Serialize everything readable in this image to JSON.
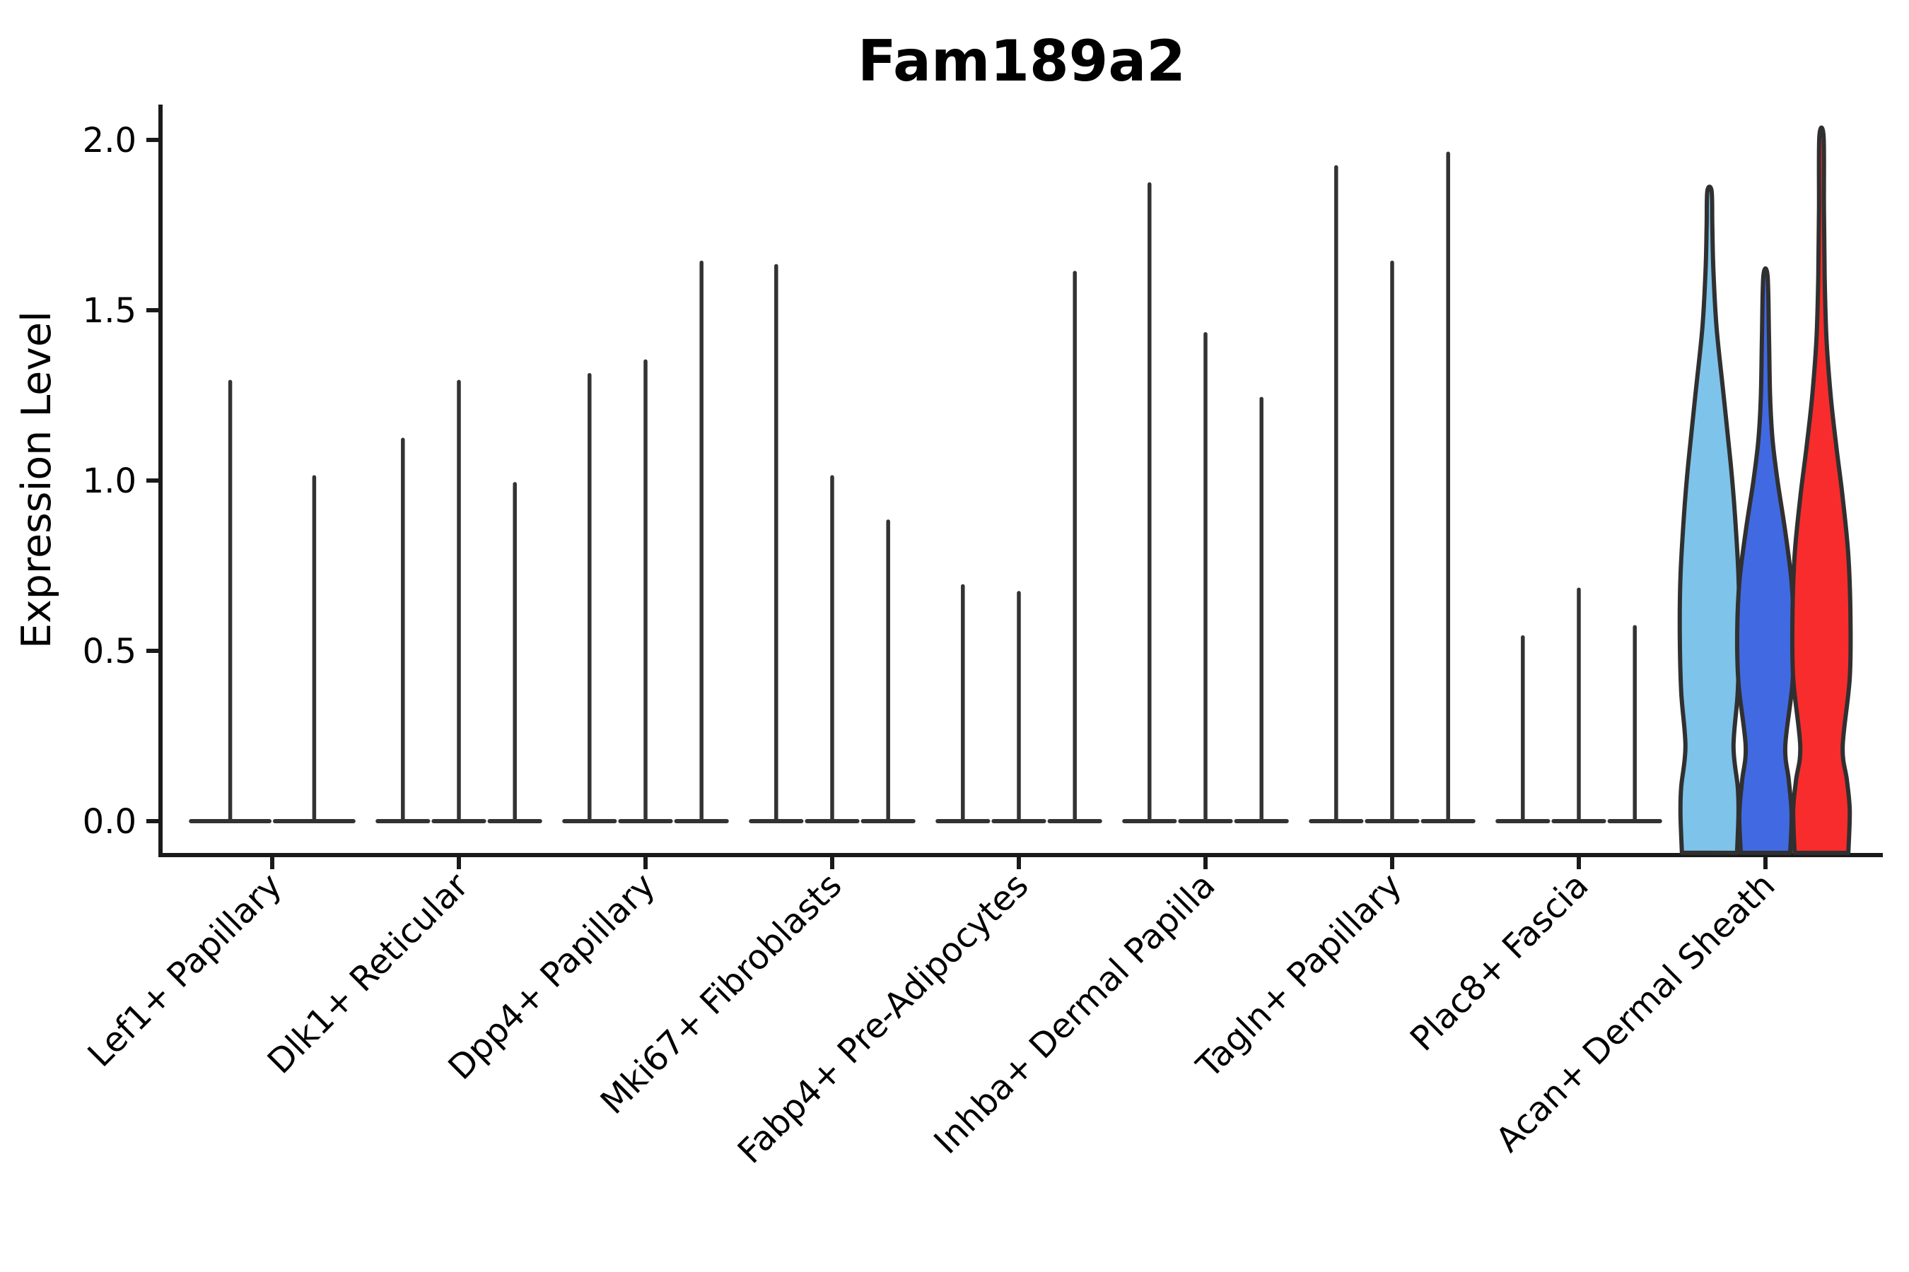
{
  "title": "Fam189a2",
  "ylabel": "Expression Level",
  "chart_data": {
    "type": "violin",
    "title": "Fam189a2",
    "xlabel": "",
    "ylabel": "Expression Level",
    "ylim": [
      -0.1,
      2.11
    ],
    "yticks": [
      "0.0",
      "0.5",
      "1.0",
      "1.5",
      "2.0"
    ],
    "ytick_values": [
      0.0,
      0.5,
      1.0,
      1.5,
      2.0
    ],
    "grid": false,
    "legend": "none",
    "x_label_rotation_deg": 45,
    "categories": [
      "Lef1+ Papillary",
      "Dlk1+ Reticular",
      "Dpp4+ Papillary",
      "Mki67+ Fibroblasts",
      "Fabp4+ Pre-Adipocytes",
      "Inhba+ Dermal Papilla",
      "Tagln+ Papillary",
      "Plac8+ Fascia",
      "Acan+ Dermal Sheath"
    ],
    "groups": [
      {
        "category": "Lef1+ Papillary",
        "violins": [
          {
            "max": 1.29
          },
          {
            "max": 1.01
          }
        ]
      },
      {
        "category": "Dlk1+ Reticular",
        "violins": [
          {
            "max": 1.12
          },
          {
            "max": 1.29
          },
          {
            "max": 0.99
          }
        ]
      },
      {
        "category": "Dpp4+ Papillary",
        "violins": [
          {
            "max": 1.31
          },
          {
            "max": 1.35
          },
          {
            "max": 1.64
          }
        ]
      },
      {
        "category": "Mki67+ Fibroblasts",
        "violins": [
          {
            "max": 1.63
          },
          {
            "max": 1.01
          },
          {
            "max": 0.88
          }
        ]
      },
      {
        "category": "Fabp4+ Pre-Adipocytes",
        "violins": [
          {
            "max": 0.69
          },
          {
            "max": 0.67
          },
          {
            "max": 1.61
          }
        ]
      },
      {
        "category": "Inhba+ Dermal Papilla",
        "violins": [
          {
            "max": 1.87
          },
          {
            "max": 1.43
          },
          {
            "max": 1.24
          }
        ]
      },
      {
        "category": "Tagln+ Papillary",
        "violins": [
          {
            "max": 1.92
          },
          {
            "max": 1.64
          },
          {
            "max": 1.96
          }
        ]
      },
      {
        "category": "Plac8+ Fascia",
        "violins": [
          {
            "max": 0.54
          },
          {
            "max": 0.68
          },
          {
            "max": 0.57
          }
        ]
      },
      {
        "category": "Acan+ Dermal Sheath",
        "violins": [
          {
            "max": 1.85,
            "fill": "#7EC3EA",
            "profile": [
              [
                -0.093,
                39
              ],
              [
                0.02,
                41
              ],
              [
                0.1,
                40
              ],
              [
                0.22,
                34
              ],
              [
                0.38,
                40
              ],
              [
                0.55,
                42
              ],
              [
                0.72,
                41
              ],
              [
                0.9,
                36
              ],
              [
                1.05,
                30
              ],
              [
                1.25,
                20
              ],
              [
                1.45,
                10
              ],
              [
                1.62,
                5.5
              ],
              [
                1.75,
                4
              ],
              [
                1.85,
                3
              ]
            ]
          },
          {
            "max": 1.6,
            "fill": "#4169E1",
            "profile": [
              [
                -0.093,
                35
              ],
              [
                0.02,
                37
              ],
              [
                0.12,
                33
              ],
              [
                0.22,
                28
              ],
              [
                0.4,
                38
              ],
              [
                0.55,
                40
              ],
              [
                0.7,
                37
              ],
              [
                0.85,
                28
              ],
              [
                1.0,
                17
              ],
              [
                1.12,
                10
              ],
              [
                1.25,
                6.5
              ],
              [
                1.42,
                5
              ],
              [
                1.6,
                3
              ]
            ]
          },
          {
            "max": 2.01,
            "fill": "#F82C2C",
            "profile": [
              [
                -0.093,
                38
              ],
              [
                0.03,
                40
              ],
              [
                0.12,
                36
              ],
              [
                0.22,
                30
              ],
              [
                0.42,
                40
              ],
              [
                0.6,
                41
              ],
              [
                0.78,
                38
              ],
              [
                0.95,
                30
              ],
              [
                1.1,
                21
              ],
              [
                1.25,
                13
              ],
              [
                1.42,
                7
              ],
              [
                1.6,
                4.5
              ],
              [
                1.8,
                3.5
              ],
              [
                2.01,
                3
              ]
            ]
          }
        ]
      }
    ],
    "colors": {
      "axis": "#1a1a1a",
      "spike": "#333333",
      "violin_outline": "#303030",
      "violin_fills": [
        "#7EC3EA",
        "#4169E1",
        "#F82C2C"
      ],
      "background": "#ffffff"
    }
  }
}
